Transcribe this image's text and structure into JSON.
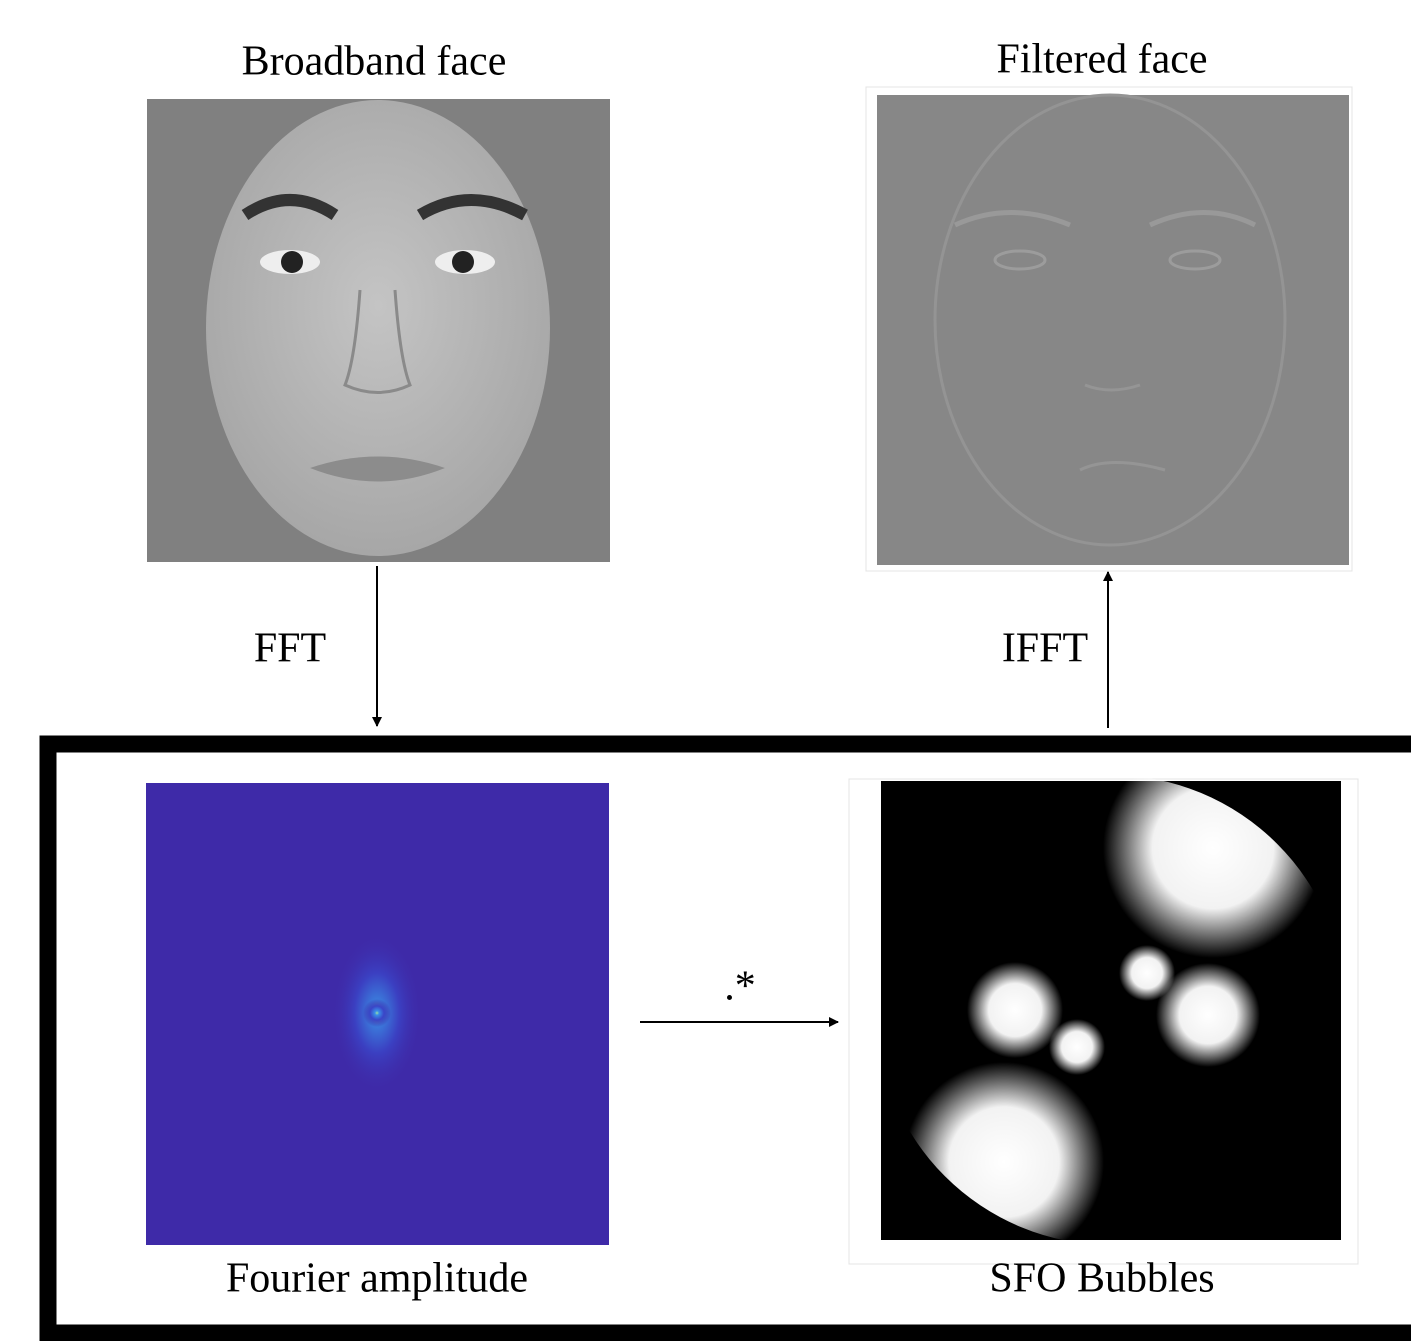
{
  "top_left": {
    "title": "Broadband face"
  },
  "top_right": {
    "title": "Filtered face"
  },
  "arrows": {
    "fft": "FFT",
    "ifft": "IFFT",
    "multiply": ".*"
  },
  "bottom_left": {
    "caption": "Fourier amplitude"
  },
  "bottom_right": {
    "caption": "SFO Bubbles"
  }
}
